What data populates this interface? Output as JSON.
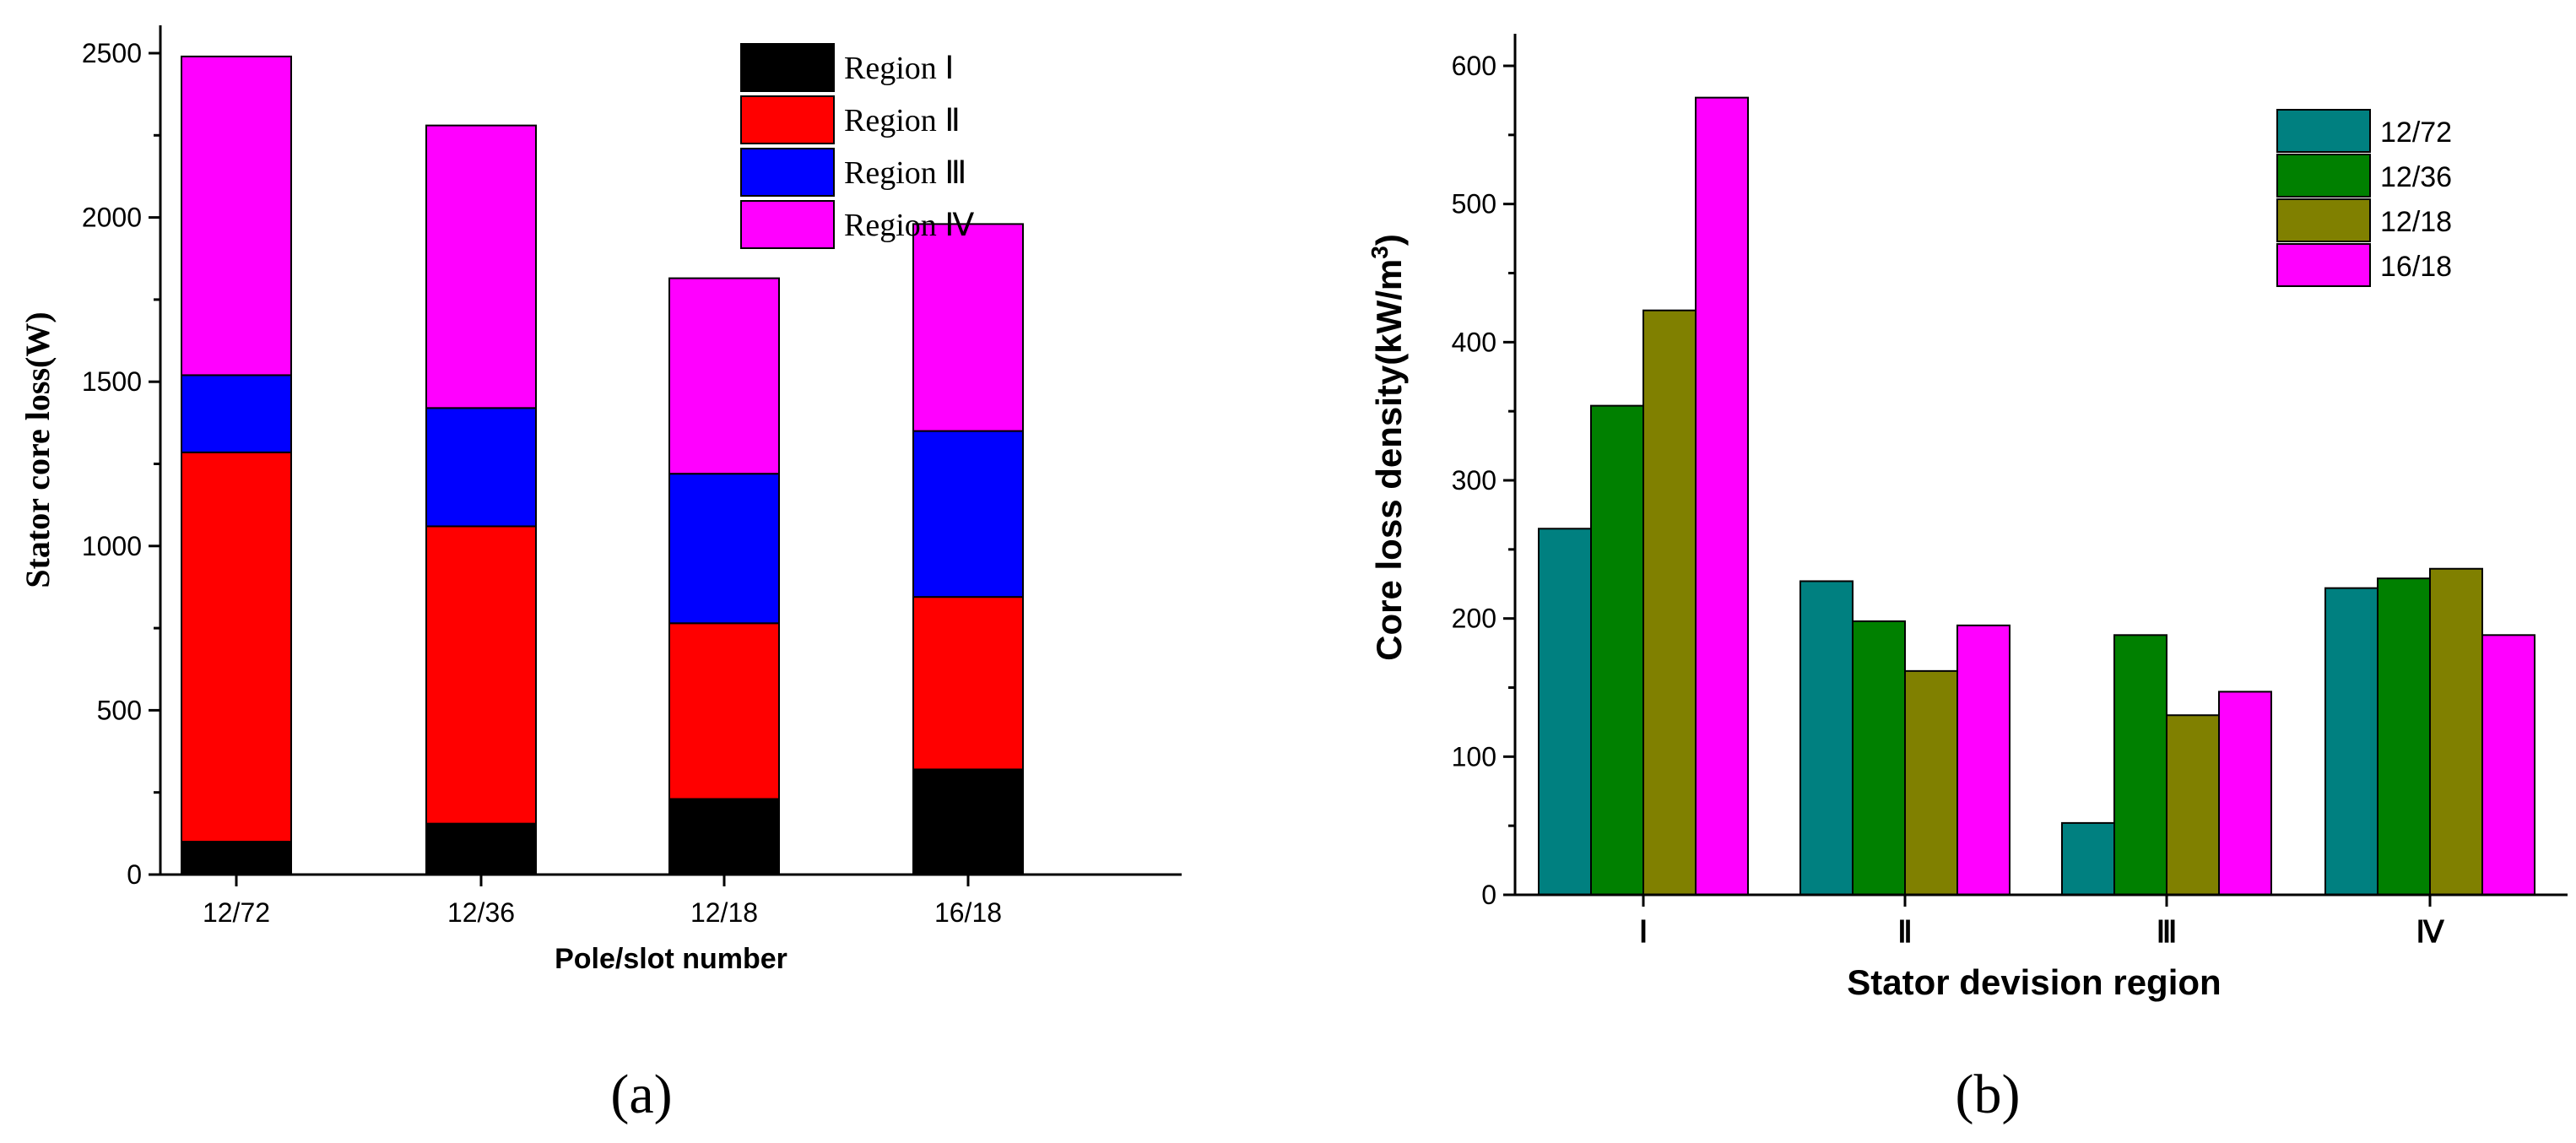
{
  "chart_data": [
    {
      "type": "bar",
      "stacked": true,
      "panel_label": "(a)",
      "xlabel": "Pole/slot number",
      "ylabel": "Stator core loss(W)",
      "ylim": [
        0,
        2600
      ],
      "yticks": [
        0,
        500,
        1000,
        1500,
        2000,
        2500
      ],
      "categories": [
        "12/72",
        "12/36",
        "12/18",
        "16/18"
      ],
      "legend_position": "top-right",
      "series": [
        {
          "name": "Region Ⅰ",
          "color": "#000000",
          "values": [
            100,
            155,
            230,
            320
          ]
        },
        {
          "name": "Region Ⅱ",
          "color": "#ff0000",
          "values": [
            1185,
            905,
            535,
            525
          ]
        },
        {
          "name": "Region Ⅲ",
          "color": "#0000ff",
          "values": [
            235,
            360,
            455,
            505
          ]
        },
        {
          "name": "Region Ⅳ",
          "color": "#ff00ff",
          "values": [
            970,
            860,
            595,
            630
          ]
        }
      ]
    },
    {
      "type": "bar",
      "stacked": false,
      "panel_label": "(b)",
      "xlabel": "Stator devision region",
      "ylabel": "Core loss density(kW/m",
      "ylabel_sup": "3",
      "ylabel_end": ")",
      "ylim": [
        0,
        620
      ],
      "yticks": [
        0,
        100,
        200,
        300,
        400,
        500,
        600
      ],
      "categories": [
        "Ⅰ",
        "Ⅱ",
        "Ⅲ",
        "Ⅳ"
      ],
      "legend_position": "top-right",
      "series": [
        {
          "name": "12/72",
          "color": "#008080",
          "values": [
            265,
            227,
            52,
            222
          ]
        },
        {
          "name": "12/36",
          "color": "#008000",
          "values": [
            354,
            198,
            188,
            229
          ]
        },
        {
          "name": "12/18",
          "color": "#808000",
          "values": [
            423,
            162,
            130,
            236
          ]
        },
        {
          "name": "16/18",
          "color": "#ff00ff",
          "values": [
            577,
            195,
            147,
            188
          ]
        }
      ]
    }
  ]
}
